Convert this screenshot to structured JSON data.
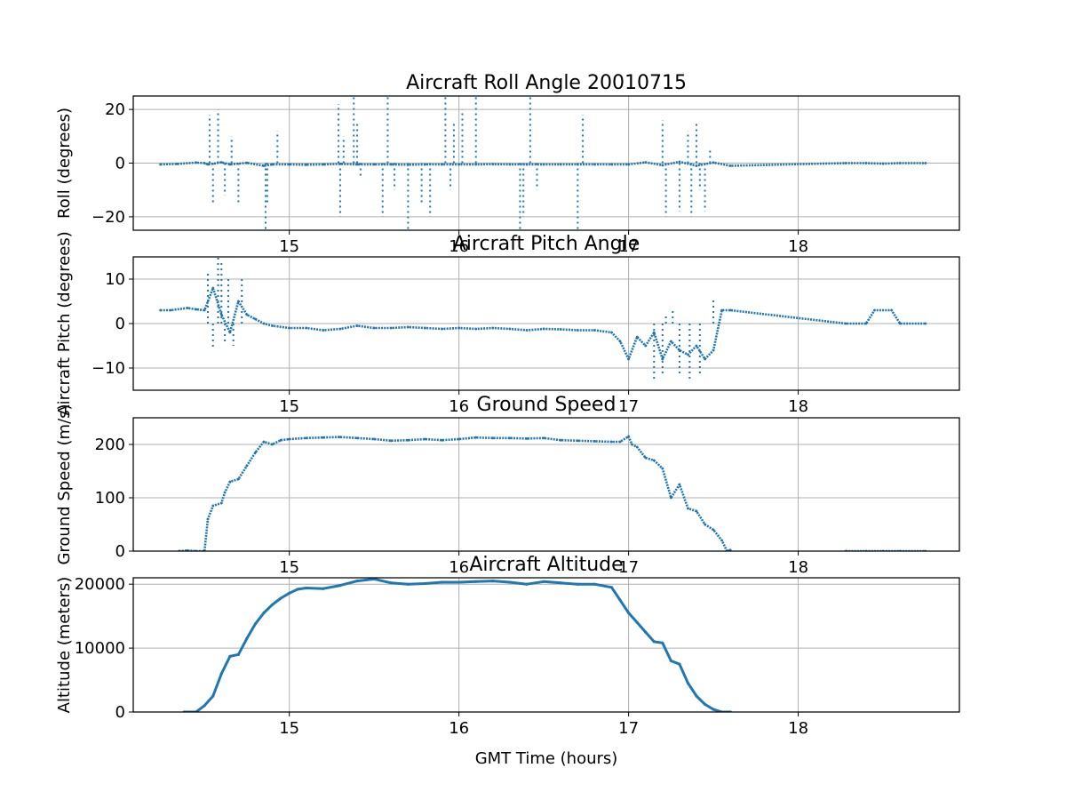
{
  "chart_data": [
    {
      "type": "scatter",
      "title": "Aircraft Roll Angle 20010715",
      "ylabel": "Roll (degrees)",
      "xlabel": "",
      "xlim": [
        14.08,
        18.95
      ],
      "ylim": [
        -25,
        25
      ],
      "xticks": [
        15,
        16,
        17,
        18
      ],
      "yticks": [
        -20,
        0,
        20
      ],
      "ytick_labels": [
        "−20",
        "0",
        "20"
      ],
      "grid": true,
      "color": "#1f77b4",
      "series": [
        {
          "x": [
            14.24,
            14.34,
            14.45,
            14.5,
            14.52,
            14.6,
            14.65,
            14.75,
            14.85,
            14.9,
            15.0,
            15.1,
            15.2,
            15.3,
            15.4,
            15.5,
            15.6,
            15.7,
            15.8,
            15.9,
            16.0,
            16.1,
            16.2,
            16.3,
            16.4,
            16.5,
            16.6,
            16.7,
            16.8,
            16.9,
            17.0,
            17.1,
            17.2,
            17.3,
            17.4,
            17.5,
            17.6,
            18.28,
            18.4,
            18.5,
            18.6,
            18.75
          ],
          "y": [
            -0.5,
            -0.3,
            0.2,
            0.0,
            -0.5,
            0.3,
            -0.5,
            0.1,
            -1.0,
            -0.5,
            -0.5,
            -0.6,
            -0.5,
            -0.3,
            -0.5,
            -0.5,
            -0.5,
            -0.6,
            -0.5,
            -0.5,
            -0.5,
            -0.5,
            -0.4,
            -0.5,
            -0.5,
            -0.5,
            -0.5,
            -0.5,
            -0.5,
            -0.5,
            -0.5,
            0.3,
            -0.8,
            0.5,
            -1.0,
            0.2,
            -1.0,
            0.0,
            0.0,
            -0.2,
            0.0,
            0.0
          ]
        }
      ],
      "outliers": {
        "x": [
          14.53,
          14.55,
          14.58,
          14.62,
          14.66,
          14.7,
          14.86,
          14.87,
          14.93,
          15.29,
          15.3,
          15.32,
          15.38,
          15.4,
          15.42,
          15.55,
          15.58,
          15.62,
          15.7,
          15.78,
          15.83,
          15.92,
          15.95,
          15.97,
          16.02,
          16.1,
          16.36,
          16.38,
          16.42,
          16.46,
          16.7,
          16.73,
          17.2,
          17.22,
          17.3,
          17.35,
          17.37,
          17.4,
          17.42,
          17.45,
          17.48
        ],
        "y": [
          18,
          -15,
          20,
          -12,
          10,
          -15,
          -25,
          -15,
          12,
          22,
          -20,
          10,
          25,
          15,
          -5,
          -20,
          25,
          -10,
          -25,
          -15,
          -20,
          25,
          -10,
          15,
          20,
          25,
          -25,
          -20,
          25,
          -10,
          -25,
          18,
          16,
          -20,
          -18,
          12,
          -20,
          15,
          -10,
          -18,
          5
        ]
      }
    },
    {
      "type": "scatter",
      "title": "Aircraft Pitch Angle",
      "ylabel": "Aircraft Pitch (degrees)",
      "xlabel": "",
      "xlim": [
        14.08,
        18.95
      ],
      "ylim": [
        -15,
        15
      ],
      "xticks": [
        15,
        16,
        17,
        18
      ],
      "yticks": [
        -10,
        0,
        10
      ],
      "ytick_labels": [
        "−10",
        "0",
        "10"
      ],
      "grid": true,
      "color": "#1f77b4",
      "series": [
        {
          "x": [
            14.24,
            14.3,
            14.4,
            14.45,
            14.5,
            14.55,
            14.6,
            14.65,
            14.7,
            14.75,
            14.8,
            14.85,
            14.9,
            15.0,
            15.1,
            15.2,
            15.3,
            15.4,
            15.5,
            15.6,
            15.7,
            15.8,
            15.9,
            16.0,
            16.1,
            16.2,
            16.3,
            16.4,
            16.5,
            16.6,
            16.7,
            16.8,
            16.9,
            16.95,
            17.0,
            17.05,
            17.1,
            17.15,
            17.2,
            17.25,
            17.3,
            17.35,
            17.4,
            17.45,
            17.5,
            17.55,
            17.6,
            18.28,
            18.4,
            18.45,
            18.55,
            18.6,
            18.75
          ],
          "y": [
            3,
            3,
            3.5,
            3.2,
            3,
            8,
            2,
            -2,
            5,
            2,
            1,
            0,
            -0.5,
            -1,
            -1,
            -1.5,
            -1.2,
            -0.5,
            -1,
            -1,
            -0.8,
            -1,
            -1.2,
            -1,
            -1.2,
            -1,
            -1.2,
            -1.5,
            -1.2,
            -1.3,
            -1.5,
            -1.5,
            -2,
            -4,
            -8,
            -3,
            -5,
            -2,
            -8,
            -4,
            -6,
            -7,
            -5,
            -8,
            -6,
            3,
            3,
            0,
            0,
            3,
            3,
            0,
            0
          ]
        }
      ],
      "outliers": {
        "x": [
          14.52,
          14.55,
          14.58,
          14.6,
          14.62,
          14.64,
          14.67,
          14.72,
          17.15,
          17.2,
          17.22,
          17.26,
          17.3,
          17.36,
          17.42,
          17.5
        ],
        "y": [
          12,
          -6,
          15,
          14,
          -4,
          10,
          -5,
          10,
          -13,
          -12,
          2,
          3,
          -12,
          -13,
          -12,
          6
        ]
      }
    },
    {
      "type": "scatter",
      "title": "Ground Speed",
      "ylabel": "Ground Speed (m/s)",
      "xlabel": "",
      "xlim": [
        14.08,
        18.95
      ],
      "ylim": [
        0,
        250
      ],
      "xticks": [
        15,
        16,
        17,
        18
      ],
      "yticks": [
        0,
        100,
        200
      ],
      "ytick_labels": [
        "0",
        "100",
        "200"
      ],
      "grid": true,
      "color": "#1f77b4",
      "series": [
        {
          "x": [
            14.35,
            14.4,
            14.45,
            14.5,
            14.52,
            14.55,
            14.6,
            14.62,
            14.65,
            14.7,
            14.75,
            14.8,
            14.85,
            14.9,
            14.95,
            15.0,
            15.1,
            15.2,
            15.3,
            15.4,
            15.5,
            15.6,
            15.7,
            15.8,
            15.9,
            16.0,
            16.1,
            16.2,
            16.3,
            16.4,
            16.5,
            16.6,
            16.7,
            16.8,
            16.9,
            16.95,
            17.0,
            17.02,
            17.05,
            17.1,
            17.15,
            17.2,
            17.25,
            17.3,
            17.35,
            17.4,
            17.45,
            17.5,
            17.55,
            17.58,
            17.6
          ],
          "y": [
            0,
            1,
            0,
            0,
            60,
            85,
            90,
            110,
            130,
            135,
            160,
            185,
            205,
            200,
            208,
            210,
            212,
            213,
            214,
            212,
            210,
            207,
            208,
            210,
            208,
            210,
            213,
            212,
            212,
            211,
            212,
            208,
            207,
            206,
            205,
            205,
            215,
            200,
            195,
            175,
            170,
            155,
            100,
            125,
            80,
            75,
            50,
            40,
            20,
            0,
            2
          ]
        },
        {
          "x": [
            18.28,
            18.4,
            18.5,
            18.6,
            18.75
          ],
          "y": [
            0,
            0,
            0,
            0,
            0
          ]
        }
      ]
    },
    {
      "type": "line",
      "title": "Aircraft Altitude",
      "ylabel": "Altitude (meters)",
      "xlabel": "GMT Time (hours)",
      "xlim": [
        14.08,
        18.95
      ],
      "ylim": [
        0,
        21000
      ],
      "xticks": [
        15,
        16,
        17,
        18
      ],
      "yticks": [
        0,
        10000,
        20000
      ],
      "ytick_labels": [
        "0",
        "10000",
        "20000"
      ],
      "grid": true,
      "color": "#1f77b4",
      "series": [
        {
          "x": [
            14.38,
            14.45,
            14.5,
            14.55,
            14.6,
            14.65,
            14.7,
            14.75,
            14.8,
            14.85,
            14.9,
            14.95,
            15.0,
            15.05,
            15.1,
            15.2,
            15.3,
            15.4,
            15.5,
            15.6,
            15.7,
            15.8,
            15.9,
            16.0,
            16.1,
            16.2,
            16.3,
            16.4,
            16.5,
            16.6,
            16.7,
            16.8,
            16.9,
            16.95,
            17.0,
            17.05,
            17.1,
            17.15,
            17.2,
            17.25,
            17.3,
            17.35,
            17.4,
            17.45,
            17.5,
            17.55,
            17.6
          ],
          "y": [
            0,
            0,
            1000,
            2500,
            6000,
            8700,
            9000,
            11500,
            13800,
            15500,
            16800,
            17800,
            18600,
            19200,
            19400,
            19300,
            19800,
            20500,
            20800,
            20200,
            20000,
            20100,
            20300,
            20300,
            20400,
            20500,
            20300,
            20000,
            20400,
            20200,
            20000,
            20000,
            19500,
            17500,
            15500,
            14000,
            12500,
            11000,
            10800,
            8000,
            7500,
            4500,
            2500,
            1200,
            400,
            0,
            0
          ]
        }
      ]
    }
  ]
}
